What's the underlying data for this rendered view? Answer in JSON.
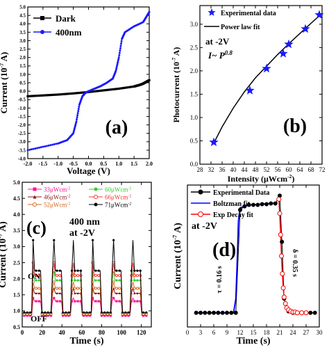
{
  "chart_data": [
    {
      "id": "a",
      "type": "line",
      "panel_label": "(a)",
      "xlabel": "Voltage (V)",
      "ylabel": "Current (10-7 A)",
      "xlim": [
        -2.0,
        2.0
      ],
      "ylim": [
        -4.0,
        5.0
      ],
      "xticks": [
        -2.0,
        -1.5,
        -1.0,
        -0.5,
        0.0,
        0.5,
        1.0,
        1.5,
        2.0
      ],
      "xticklabels": [
        "-2.0",
        "-1.5",
        "-1.0",
        "-0.5",
        "0.0",
        "0.5",
        "1.0",
        "1.5",
        "2.0"
      ],
      "yticks": [
        -4.0,
        -3.5,
        -3.0,
        -2.5,
        -2.0,
        -1.5,
        -1.0,
        -0.5,
        0.0,
        0.5,
        1.0,
        1.5,
        2.0,
        2.5,
        3.0,
        3.5,
        4.0,
        4.5,
        5.0
      ],
      "yticklabels": [
        "-4.0",
        "-3.5",
        "-3.0",
        "-2.5",
        "-2.0",
        "-1.5",
        "-1.0",
        "-0.5",
        "0.0",
        "0.5",
        "1.0",
        "1.5",
        "2.0",
        "2.5",
        "3.0",
        "3.5",
        "4.0",
        "4.5",
        "5.0"
      ],
      "legend": "top-left",
      "series": [
        {
          "name": "Dark",
          "color": "#000000",
          "marker": "square",
          "x": [
            -2.0,
            -1.5,
            -1.0,
            -0.5,
            0.0,
            0.5,
            1.0,
            1.5,
            1.6,
            1.7,
            1.8,
            1.9,
            2.0
          ],
          "y": [
            -0.3,
            -0.25,
            -0.2,
            -0.13,
            -0.05,
            0.05,
            0.15,
            0.28,
            0.33,
            0.38,
            0.45,
            0.55,
            0.65
          ]
        },
        {
          "name": "400nm",
          "color": "#1a1aff",
          "marker": "circle",
          "x": [
            -2.0,
            -1.5,
            -1.0,
            -0.7,
            -0.5,
            -0.4,
            -0.3,
            -0.2,
            -0.1,
            0.0,
            0.2,
            0.4,
            0.6,
            0.8,
            0.9,
            1.0,
            1.1,
            1.2,
            1.5,
            1.8,
            1.9,
            2.0
          ],
          "y": [
            -3.5,
            -3.3,
            -3.1,
            -2.9,
            -2.5,
            -1.8,
            -0.8,
            -0.3,
            -0.1,
            0.0,
            0.15,
            0.3,
            0.5,
            0.75,
            1.2,
            2.0,
            3.1,
            3.5,
            3.85,
            4.1,
            4.4,
            4.7
          ]
        }
      ]
    },
    {
      "id": "b",
      "type": "scatter",
      "panel_label": "(b)",
      "xlabel": "Intensity (μWcm-2)",
      "ylabel": "Photocurrent (10-7 A)",
      "xlim": [
        28,
        72
      ],
      "ylim": [
        0,
        3.4
      ],
      "xticks": [
        28,
        32,
        36,
        40,
        44,
        48,
        52,
        56,
        60,
        64,
        68,
        72
      ],
      "xticklabels": [
        "28",
        "32",
        "36",
        "40",
        "44",
        "48",
        "52",
        "56",
        "60",
        "64",
        "68",
        "72"
      ],
      "yticks": [
        0.0,
        0.5,
        1.0,
        1.5,
        2.0,
        2.5,
        3.0
      ],
      "yticklabels": [
        "0.0",
        "0.5",
        "1.0",
        "1.5",
        "2.0",
        "2.5",
        "3.0"
      ],
      "annotations": [
        "at -2V",
        "I~ P0.8"
      ],
      "legend": "top-left",
      "series": [
        {
          "name": "Experimental data",
          "color": "#1a1aff",
          "marker": "star",
          "x": [
            33,
            46,
            52,
            58,
            60,
            66,
            71
          ],
          "y": [
            0.47,
            1.58,
            2.05,
            2.37,
            2.57,
            2.9,
            3.2
          ]
        },
        {
          "name": "Power law fit",
          "color": "#000000",
          "marker": "none",
          "x": [
            33,
            36,
            40,
            44,
            48,
            52,
            56,
            60,
            64,
            68,
            71
          ],
          "y": [
            0.45,
            0.8,
            1.2,
            1.55,
            1.85,
            2.1,
            2.35,
            2.58,
            2.8,
            3.02,
            3.18
          ]
        }
      ]
    },
    {
      "id": "c",
      "type": "line",
      "panel_label": "(c)",
      "xlabel": "Time (s)",
      "ylabel": "Current (10-7 A)",
      "xlim": [
        0,
        130
      ],
      "ylim": [
        0.5,
        5.0
      ],
      "xticks": [
        0,
        20,
        40,
        60,
        80,
        100,
        120
      ],
      "xticklabels": [
        "0",
        "20",
        "40",
        "60",
        "80",
        "100",
        "120"
      ],
      "yticks": [
        0.5,
        1.0,
        1.5,
        2.0,
        2.5,
        3.0,
        3.5,
        4.0,
        4.5,
        5.0
      ],
      "yticklabels": [
        "0.5",
        "1.0",
        "1.5",
        "2.0",
        "2.5",
        "3.0",
        "3.5",
        "4.0",
        "4.5",
        "5.0"
      ],
      "annotations": [
        "400 nm",
        "at -2V",
        "ON",
        "OFF"
      ],
      "legend": "top",
      "on_intervals": [
        [
          10,
          20
        ],
        [
          30,
          40
        ],
        [
          50,
          60
        ],
        [
          70,
          80
        ],
        [
          90,
          100
        ],
        [
          110,
          120
        ]
      ],
      "series": [
        {
          "name": "33μWcm-2",
          "color": "#ff1493",
          "marker": "square",
          "off": 0.85,
          "on": 1.3,
          "spike": 1.4
        },
        {
          "name": "60μWcm-2",
          "color": "#33cc33",
          "marker": "circle",
          "off": 0.9,
          "on": 1.95,
          "spike": 2.2
        },
        {
          "name": "46μWcm-2",
          "color": "#8b1a1a",
          "marker": "triangle",
          "off": 0.88,
          "on": 1.55,
          "spike": 1.7
        },
        {
          "name": "66μWcm-2",
          "color": "#ff3030",
          "marker": "circle-open",
          "off": 0.92,
          "on": 2.1,
          "spike": 2.5
        },
        {
          "name": "52μWcm-2",
          "color": "#d2691e",
          "marker": "circle-open",
          "off": 0.9,
          "on": 1.7,
          "spike": 1.9
        },
        {
          "name": "71μWcm-2",
          "color": "#000000",
          "marker": "circle",
          "off": 0.95,
          "on": 2.25,
          "spike": 3.2
        }
      ]
    },
    {
      "id": "d",
      "type": "line",
      "panel_label": "(d)",
      "xlabel": "Time (s)",
      "ylabel": "Current (10-7 A)",
      "xlim": [
        0,
        30
      ],
      "ylim": [
        0.6,
        2.6
      ],
      "xticks": [
        0,
        3,
        6,
        9,
        12,
        15,
        18,
        21,
        24,
        27,
        30
      ],
      "xticklabels": [
        "0",
        "3",
        "6",
        "9",
        "12",
        "15",
        "18",
        "21",
        "24",
        "27",
        "30"
      ],
      "annotations": [
        "at -2V",
        "τ = 0.16 s",
        "δ = 0.35 s"
      ],
      "legend": "top-left",
      "series": [
        {
          "name": "Experimental Data",
          "color": "#000000",
          "marker": "circle",
          "x": [
            2,
            3,
            4,
            5,
            6,
            7,
            8,
            9,
            10,
            11,
            12,
            13,
            14,
            15,
            16,
            17,
            18,
            19,
            20,
            21,
            21.5,
            22,
            23,
            24,
            25,
            26,
            27,
            28,
            29
          ],
          "y": [
            0.8,
            0.8,
            0.8,
            0.8,
            0.8,
            0.8,
            0.8,
            0.8,
            0.8,
            0.8,
            2.25,
            2.3,
            2.32,
            2.32,
            2.32,
            2.33,
            2.33,
            2.34,
            2.34,
            2.45,
            1.8,
            1.0,
            0.82,
            0.8,
            0.8,
            0.8,
            0.8,
            0.8,
            0.8
          ]
        },
        {
          "name": "Boltzman fit",
          "color": "#0000ff",
          "marker": "none",
          "x": [
            2,
            10.5,
            11,
            11.3,
            11.6,
            12,
            14,
            19,
            20.5
          ],
          "y": [
            0.8,
            0.8,
            1.0,
            1.5,
            2.1,
            2.28,
            2.32,
            2.34,
            2.35
          ]
        },
        {
          "name": "Exp Decay fit",
          "color": "#ff0000",
          "marker": "circle-open",
          "x": [
            20.8,
            21.0,
            21.2,
            21.4,
            21.6,
            21.8,
            22.0,
            22.3,
            22.6,
            23.0,
            23.5,
            24.0,
            24.5,
            25.0,
            26.0,
            27.0
          ],
          "y": [
            2.4,
            2.2,
            1.9,
            1.6,
            1.35,
            1.15,
            1.02,
            0.93,
            0.87,
            0.84,
            0.82,
            0.81,
            0.81,
            0.8,
            0.8,
            0.8
          ]
        }
      ]
    }
  ]
}
